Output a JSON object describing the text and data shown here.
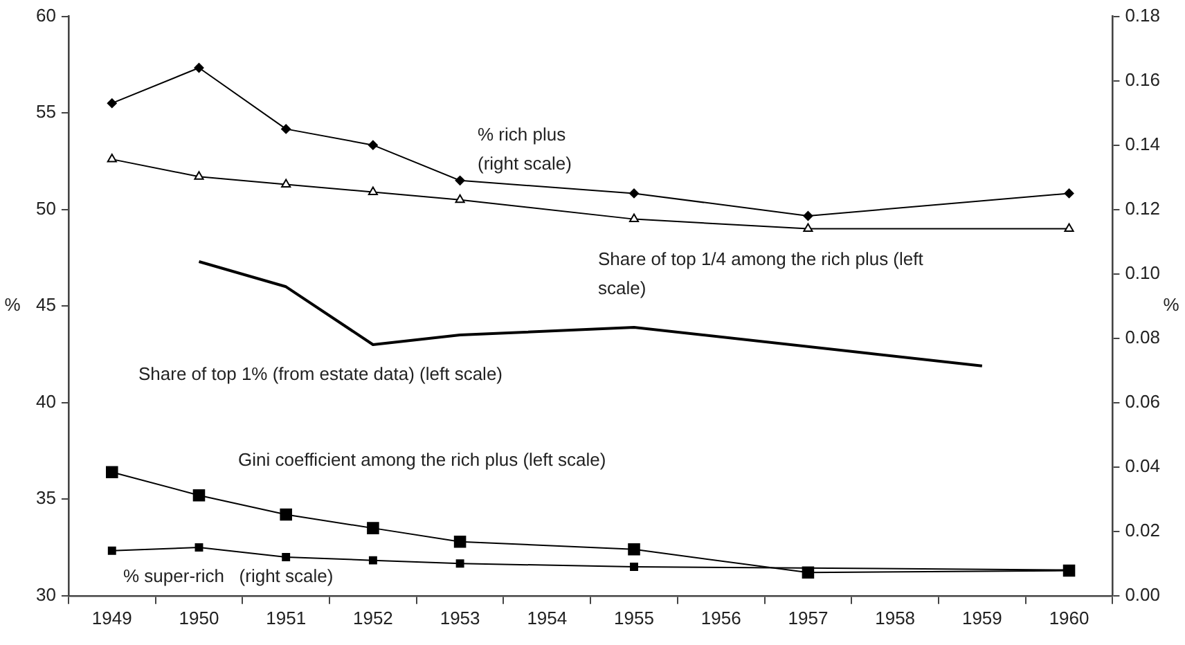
{
  "chart_data": {
    "type": "line",
    "categories": [
      "1949",
      "1950",
      "1951",
      "1952",
      "1953",
      "1954",
      "1955",
      "1956",
      "1957",
      "1958",
      "1959",
      "1960"
    ],
    "ylabel": "%",
    "y2label": "%",
    "ylim": [
      30,
      60
    ],
    "yticks": [
      30,
      35,
      40,
      45,
      50,
      55,
      60
    ],
    "y2lim": [
      0,
      0.18
    ],
    "y2ticks": [
      {
        "value": 0,
        "label": "0.00"
      },
      {
        "value": 0.02,
        "label": "0.02"
      },
      {
        "value": 0.04,
        "label": "0.04"
      },
      {
        "value": 0.06,
        "label": "0.06"
      },
      {
        "value": 0.08,
        "label": "0.08"
      },
      {
        "value": 0.1,
        "label": "0.10"
      },
      {
        "value": 0.12,
        "label": "0.12"
      },
      {
        "value": 0.14,
        "label": "0.14"
      },
      {
        "value": 0.16,
        "label": "0.16"
      },
      {
        "value": 0.18,
        "label": "0.18"
      }
    ],
    "grid": false,
    "legend": false,
    "series": [
      {
        "name": "% rich plus (right scale)",
        "color": "#000000",
        "axis": "y2",
        "marker": "diamond",
        "values": [
          0.153,
          0.164,
          0.145,
          0.14,
          0.129,
          null,
          0.125,
          null,
          0.118,
          null,
          null,
          0.125
        ]
      },
      {
        "name": "Share of top 1/4 among the rich plus (left scale)",
        "color": "#000000",
        "marker": "triangle",
        "values": [
          52.6,
          51.7,
          51.3,
          50.9,
          50.5,
          null,
          49.5,
          null,
          49.0,
          null,
          null,
          49.0
        ]
      },
      {
        "name": "Share of top 1% (from estate data) (left scale)",
        "color": "#000000",
        "marker": "none",
        "values": [
          null,
          47.3,
          46.0,
          43.0,
          43.5,
          null,
          43.9,
          null,
          null,
          null,
          41.9,
          null
        ]
      },
      {
        "name": "Gini coefficient among the rich plus (left scale)",
        "color": "#000000",
        "marker": "square",
        "values": [
          36.4,
          35.2,
          34.2,
          33.5,
          32.8,
          null,
          32.4,
          null,
          31.2,
          null,
          null,
          31.3
        ]
      },
      {
        "name": "% super-rich   (right scale)",
        "color": "#000000",
        "axis": "y2",
        "marker": "square",
        "values": [
          0.014,
          0.015,
          0.012,
          0.011,
          0.01,
          null,
          0.009,
          null,
          null,
          null,
          null,
          0.008
        ]
      }
    ]
  }
}
